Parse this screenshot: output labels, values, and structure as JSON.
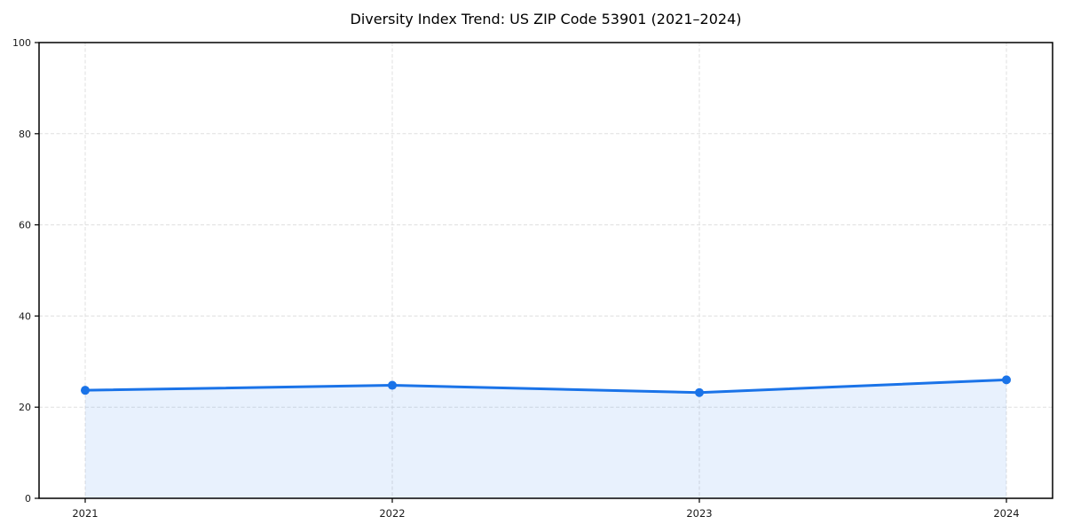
{
  "page": {
    "background": "#ffffff"
  },
  "chart_data": {
    "type": "area",
    "title": "Diversity Index Trend: US ZIP Code 53901 (2021–2024)",
    "categories": [
      "2021",
      "2022",
      "2023",
      "2024"
    ],
    "x": [
      2021,
      2022,
      2023,
      2024
    ],
    "series": [
      {
        "name": "Diversity Index",
        "values": [
          23.7,
          24.8,
          23.2,
          26.0
        ]
      }
    ],
    "xlabel": "",
    "ylabel": "",
    "ylim": [
      0,
      100
    ],
    "yticks": [
      0,
      20,
      40,
      60,
      80,
      100
    ],
    "ytick_labels": [
      "0",
      "20",
      "40",
      "60",
      "80",
      "100"
    ],
    "grid": true,
    "grid_style": "dashed",
    "legend_position": "none",
    "colors": {
      "line": "#1a73e8",
      "marker": "#1a73e8",
      "fill": "rgba(26,115,232,0.10)",
      "grid": "#dfdfdf",
      "axis": "#000000",
      "tick_text": "#1a1a1a"
    }
  }
}
